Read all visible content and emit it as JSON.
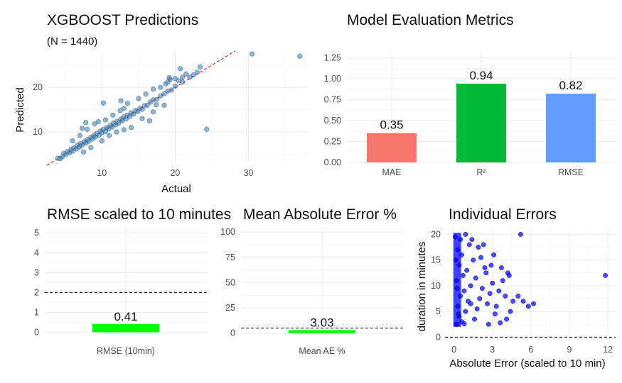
{
  "colors": {
    "scatter_fill": "#4682b4",
    "refline": "#cc0000",
    "mae": "#f8766d",
    "r2": "#00ba38",
    "rmse": "#619cff",
    "single_bar": "#00ff00",
    "errors_points": "#0000ff",
    "hline": "#000000"
  },
  "chart_data": [
    {
      "id": "predictions",
      "type": "scatter",
      "title": "XGBOOST Predictions",
      "subtitle": "(N = 1440)",
      "xlabel": "Actual",
      "ylabel": "Predicted",
      "xlim": [
        2.5,
        38
      ],
      "ylim": [
        3,
        28
      ],
      "xticks": [
        10,
        20,
        30
      ],
      "yticks": [
        10,
        20
      ],
      "reference_line": {
        "slope": 1,
        "intercept": 0,
        "style": "dashed",
        "color": "#cc0000"
      },
      "points": [
        [
          4.0,
          4.1
        ],
        [
          4.3,
          4.0
        ],
        [
          4.6,
          4.4
        ],
        [
          4.8,
          5.2
        ],
        [
          5.1,
          4.9
        ],
        [
          5.3,
          5.6
        ],
        [
          5.6,
          5.3
        ],
        [
          5.8,
          6.1
        ],
        [
          6.0,
          5.7
        ],
        [
          6.2,
          6.4
        ],
        [
          6.5,
          6.2
        ],
        [
          6.7,
          7.0
        ],
        [
          6.9,
          6.6
        ],
        [
          7.1,
          7.4
        ],
        [
          7.3,
          7.0
        ],
        [
          7.6,
          7.8
        ],
        [
          7.8,
          7.5
        ],
        [
          8.0,
          8.3
        ],
        [
          8.2,
          7.9
        ],
        [
          8.5,
          8.8
        ],
        [
          8.7,
          8.4
        ],
        [
          8.9,
          9.2
        ],
        [
          9.1,
          8.9
        ],
        [
          9.3,
          9.7
        ],
        [
          9.6,
          9.3
        ],
        [
          9.8,
          10.2
        ],
        [
          10.0,
          9.8
        ],
        [
          10.2,
          10.6
        ],
        [
          10.5,
          10.1
        ],
        [
          10.7,
          11.0
        ],
        [
          10.9,
          10.7
        ],
        [
          11.2,
          11.5
        ],
        [
          11.4,
          11.1
        ],
        [
          11.6,
          12.0
        ],
        [
          11.9,
          11.6
        ],
        [
          12.1,
          12.4
        ],
        [
          12.3,
          12.0
        ],
        [
          12.6,
          12.9
        ],
        [
          12.8,
          12.5
        ],
        [
          13.0,
          13.4
        ],
        [
          13.3,
          12.9
        ],
        [
          13.5,
          13.8
        ],
        [
          13.8,
          13.5
        ],
        [
          14.0,
          14.3
        ],
        [
          14.3,
          14.0
        ],
        [
          14.6,
          14.8
        ],
        [
          14.9,
          14.6
        ],
        [
          15.2,
          15.3
        ],
        [
          15.5,
          15.1
        ],
        [
          15.8,
          15.9
        ],
        [
          16.2,
          16.0
        ],
        [
          16.6,
          16.7
        ],
        [
          17.0,
          17.2
        ],
        [
          17.5,
          17.3
        ],
        [
          18.0,
          18.1
        ],
        [
          18.5,
          18.6
        ],
        [
          19.0,
          19.2
        ],
        [
          19.5,
          19.4
        ],
        [
          20.0,
          20.3
        ],
        [
          21.0,
          21.2
        ],
        [
          22.0,
          22.3
        ],
        [
          22.5,
          22.8
        ],
        [
          23.0,
          23.4
        ],
        [
          23.4,
          24.6
        ],
        [
          6.0,
          8.0
        ],
        [
          7.0,
          9.2
        ],
        [
          8.0,
          10.6
        ],
        [
          9.0,
          11.8
        ],
        [
          10.0,
          8.0
        ],
        [
          11.0,
          9.2
        ],
        [
          12.0,
          10.0
        ],
        [
          9.5,
          12.3
        ],
        [
          12.5,
          14.8
        ],
        [
          13.5,
          16.4
        ],
        [
          15.0,
          17.5
        ],
        [
          16.0,
          18.5
        ],
        [
          17.0,
          19.6
        ],
        [
          18.0,
          20.0
        ],
        [
          18.7,
          20.8
        ],
        [
          19.0,
          21.2
        ],
        [
          19.3,
          21.8
        ],
        [
          20.0,
          22.0
        ],
        [
          20.5,
          21.5
        ],
        [
          21.0,
          22.3
        ],
        [
          21.5,
          23.0
        ],
        [
          14.0,
          11.0
        ],
        [
          15.5,
          13.0
        ],
        [
          17.0,
          14.5
        ],
        [
          18.5,
          16.0
        ],
        [
          16.5,
          12.5
        ],
        [
          13.0,
          10.5
        ],
        [
          11.5,
          13.8
        ],
        [
          8.5,
          6.5
        ],
        [
          7.5,
          5.5
        ],
        [
          10.5,
          12.7
        ],
        [
          7.3,
          10.8
        ],
        [
          7.8,
          12.1
        ],
        [
          10.2,
          16.5
        ],
        [
          13.0,
          15.3
        ],
        [
          12.6,
          17.0
        ],
        [
          17.4,
          16.1
        ],
        [
          19.2,
          22.2
        ],
        [
          20.7,
          24.2
        ],
        [
          24.3,
          10.6
        ],
        [
          30.5,
          27.5
        ],
        [
          37.0,
          27.0
        ]
      ]
    },
    {
      "id": "metrics",
      "type": "bar",
      "title": "Model Evaluation Metrics",
      "categories": [
        "MAE",
        "R²",
        "RMSE"
      ],
      "values": [
        0.35,
        0.94,
        0.82
      ],
      "labels": [
        "0.35",
        "0.94",
        "0.82"
      ],
      "ylim": [
        0,
        1.32
      ],
      "yticks": [
        "0.00",
        "0.25",
        "0.50",
        "0.75",
        "1.00",
        "1.25"
      ]
    },
    {
      "id": "rmse10",
      "type": "bar",
      "title": "RMSE scaled to 10 minutes",
      "categories": [
        "RMSE (10min)"
      ],
      "values": [
        0.41
      ],
      "labels": [
        "0.41"
      ],
      "ylim": [
        -0.2,
        5.3
      ],
      "yticks": [
        0,
        1,
        2,
        3,
        4,
        5
      ],
      "hline": 2
    },
    {
      "id": "mae_pct",
      "type": "bar",
      "title": "Mean Absolute Error %",
      "categories": [
        "Mean AE %"
      ],
      "values": [
        3.03
      ],
      "labels": [
        "3.03"
      ],
      "ylim": [
        -3,
        105
      ],
      "yticks": [
        0,
        25,
        50,
        75,
        100
      ],
      "hline": 5
    },
    {
      "id": "errors",
      "type": "scatter",
      "title": "Individual Errors",
      "xlabel": "Absolute Error (scaled to 10 min)",
      "ylabel": "duration in minutes",
      "xlim": [
        -0.7,
        12.6
      ],
      "ylim": [
        -0.5,
        21.3
      ],
      "xticks": [
        0,
        3,
        6,
        9,
        12
      ],
      "yticks": [
        0,
        5,
        10,
        15,
        20
      ],
      "hline": 0,
      "points": [
        [
          0.2,
          2.5
        ],
        [
          0.6,
          3.0
        ],
        [
          0.4,
          4.0
        ],
        [
          0.9,
          5.0
        ],
        [
          0.3,
          6.0
        ],
        [
          1.1,
          7.0
        ],
        [
          0.5,
          8.0
        ],
        [
          0.8,
          9.0
        ],
        [
          1.3,
          10.0
        ],
        [
          0.2,
          11.0
        ],
        [
          0.7,
          12.0
        ],
        [
          1.0,
          13.0
        ],
        [
          0.4,
          14.0
        ],
        [
          1.5,
          15.0
        ],
        [
          0.6,
          16.0
        ],
        [
          0.3,
          17.0
        ],
        [
          1.2,
          18.0
        ],
        [
          0.5,
          19.0
        ],
        [
          0.9,
          20.0
        ],
        [
          1.6,
          3.5
        ],
        [
          1.8,
          5.5
        ],
        [
          2.0,
          7.5
        ],
        [
          2.2,
          9.5
        ],
        [
          1.7,
          11.5
        ],
        [
          2.4,
          13.5
        ],
        [
          2.1,
          15.5
        ],
        [
          1.9,
          17.5
        ],
        [
          2.6,
          6.5
        ],
        [
          2.8,
          8.5
        ],
        [
          3.0,
          10.5
        ],
        [
          2.5,
          12.5
        ],
        [
          3.2,
          4.5
        ],
        [
          3.5,
          9.0
        ],
        [
          3.8,
          11.0
        ],
        [
          3.3,
          6.0
        ],
        [
          4.0,
          8.0
        ],
        [
          4.3,
          12.0
        ],
        [
          4.6,
          7.0
        ],
        [
          4.1,
          3.5
        ],
        [
          5.0,
          8.0
        ],
        [
          5.4,
          7.0
        ],
        [
          5.8,
          6.0
        ],
        [
          6.2,
          6.5
        ],
        [
          4.4,
          5.0
        ],
        [
          3.6,
          2.8
        ],
        [
          2.7,
          2.5
        ],
        [
          5.2,
          20.0
        ],
        [
          11.8,
          12.0
        ],
        [
          0.1,
          19.5
        ],
        [
          0.15,
          15.0
        ],
        [
          0.25,
          9.5
        ],
        [
          0.35,
          4.5
        ],
        [
          1.4,
          19.0
        ],
        [
          2.3,
          18.0
        ],
        [
          3.1,
          16.0
        ],
        [
          3.7,
          13.5
        ],
        [
          4.2,
          12.5
        ],
        [
          2.9,
          14.0
        ],
        [
          1.3,
          6.5
        ],
        [
          0.8,
          2.6
        ]
      ]
    }
  ]
}
